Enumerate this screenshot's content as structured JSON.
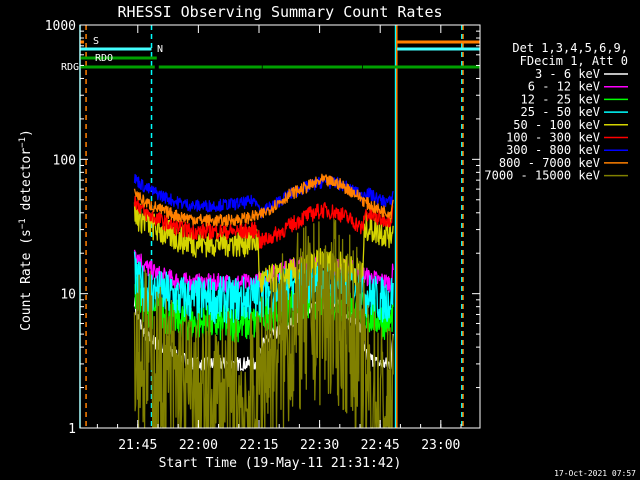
{
  "chart_data": {
    "type": "line",
    "title": "RHESSI Observing Summary Count Rates",
    "xlabel": "Start Time (19-May-11 21:31:42)",
    "ylabel": "Count Rate (s⁻¹ detector⁻¹)",
    "ylabel_main": "Count Rate (s",
    "ylabel_sup1": "−1",
    "ylabel_mid": " detector",
    "ylabel_sup2": "−1",
    "ylabel_end": ")",
    "yscale": "log",
    "ylim": [
      1,
      1000
    ],
    "xlim_minutes": [
      0,
      99
    ],
    "x_ticks": [
      {
        "m": 14.3,
        "label": "21:45"
      },
      {
        "m": 29.3,
        "label": "22:00"
      },
      {
        "m": 44.3,
        "label": "22:15"
      },
      {
        "m": 59.3,
        "label": "22:30"
      },
      {
        "m": 74.3,
        "label": "22:45"
      },
      {
        "m": 89.3,
        "label": "23:00"
      }
    ],
    "y_ticks": [
      {
        "v": 1,
        "label": "1"
      },
      {
        "v": 10,
        "label": "10"
      },
      {
        "v": 100,
        "label": "100"
      },
      {
        "v": 1000,
        "label": "1000"
      }
    ],
    "legend_header": [
      "Det 1,3,4,5,6,9,",
      "FDecim 1, Att 0"
    ],
    "legend_placement": "right",
    "timestamp": "17-Oct-2021 07:57",
    "series": [
      {
        "name": "3 - 6 keV",
        "color": "#ffffff",
        "points": [
          [
            13.5,
            9
          ],
          [
            14,
            7
          ],
          [
            16,
            5
          ],
          [
            20,
            4
          ],
          [
            24,
            3.5
          ],
          [
            28,
            3
          ],
          [
            32,
            3
          ],
          [
            36,
            3
          ],
          [
            40,
            3
          ],
          [
            44,
            3
          ],
          [
            44.5,
            4
          ],
          [
            48,
            5
          ],
          [
            52,
            6
          ],
          [
            56,
            7.5
          ],
          [
            60,
            8.5
          ],
          [
            64,
            8
          ],
          [
            68,
            6.5
          ],
          [
            70,
            5
          ],
          [
            70.5,
            3.5
          ],
          [
            74,
            3
          ],
          [
            77,
            3
          ],
          [
            77.5,
            5
          ]
        ]
      },
      {
        "name": "6 - 12 keV",
        "color": "#ff00ff",
        "points": [
          [
            13.5,
            22
          ],
          [
            14,
            20
          ],
          [
            16,
            16
          ],
          [
            20,
            13.5
          ],
          [
            24,
            12.5
          ],
          [
            28,
            12
          ],
          [
            32,
            12
          ],
          [
            36,
            12
          ],
          [
            40,
            12
          ],
          [
            44,
            12
          ],
          [
            44.5,
            13
          ],
          [
            48,
            14
          ],
          [
            52,
            15.5
          ],
          [
            56,
            16.5
          ],
          [
            60,
            16.5
          ],
          [
            64,
            16
          ],
          [
            68,
            15
          ],
          [
            70,
            14
          ],
          [
            70.5,
            13.5
          ],
          [
            74,
            12.5
          ],
          [
            77,
            12
          ],
          [
            77.5,
            15
          ]
        ]
      },
      {
        "name": "12 - 25 keV",
        "color": "#00ff00",
        "points": [
          [
            13.5,
            11
          ],
          [
            14,
            10
          ],
          [
            16,
            8
          ],
          [
            20,
            7
          ],
          [
            24,
            6.5
          ],
          [
            28,
            6
          ],
          [
            32,
            6
          ],
          [
            36,
            6
          ],
          [
            40,
            6
          ],
          [
            44,
            6
          ],
          [
            44.5,
            7
          ],
          [
            48,
            7.5
          ],
          [
            52,
            8
          ],
          [
            56,
            8.5
          ],
          [
            60,
            9
          ],
          [
            64,
            8.5
          ],
          [
            68,
            8
          ],
          [
            70,
            7.5
          ],
          [
            70.5,
            7
          ],
          [
            74,
            6.5
          ],
          [
            77,
            6
          ],
          [
            77.5,
            8
          ]
        ]
      },
      {
        "name": "25 - 50 keV",
        "color": "#00ffff",
        "points": [
          [
            13.5,
            14
          ],
          [
            14,
            12
          ],
          [
            16,
            11
          ],
          [
            20,
            10
          ],
          [
            24,
            9.5
          ],
          [
            28,
            9
          ],
          [
            32,
            9
          ],
          [
            36,
            9
          ],
          [
            40,
            9
          ],
          [
            44,
            9.5
          ],
          [
            44.5,
            10
          ],
          [
            48,
            10.5
          ],
          [
            52,
            11
          ],
          [
            56,
            12
          ],
          [
            60,
            12.5
          ],
          [
            64,
            12
          ],
          [
            68,
            11.5
          ],
          [
            70,
            11
          ],
          [
            70.5,
            10
          ],
          [
            74,
            9
          ],
          [
            77,
            9
          ],
          [
            77.5,
            12
          ]
        ]
      },
      {
        "name": "50 - 100 keV",
        "color": "#d4d400",
        "points": [
          [
            13.5,
            40
          ],
          [
            14,
            38
          ],
          [
            16,
            35
          ],
          [
            20,
            29
          ],
          [
            24,
            26
          ],
          [
            28,
            24
          ],
          [
            32,
            24
          ],
          [
            36,
            24
          ],
          [
            40,
            24
          ],
          [
            44,
            25
          ],
          [
            44.5,
            12
          ],
          [
            48,
            13
          ],
          [
            52,
            14
          ],
          [
            56,
            16
          ],
          [
            60,
            17
          ],
          [
            64,
            16
          ],
          [
            68,
            15
          ],
          [
            70,
            14
          ],
          [
            70.5,
            32
          ],
          [
            74,
            29
          ],
          [
            77,
            28
          ],
          [
            77.5,
            32
          ]
        ]
      },
      {
        "name": "100 - 300 keV",
        "color": "#ff0000",
        "points": [
          [
            13.5,
            50
          ],
          [
            14,
            48
          ],
          [
            16,
            40
          ],
          [
            20,
            35
          ],
          [
            24,
            31
          ],
          [
            28,
            29
          ],
          [
            32,
            29
          ],
          [
            36,
            29
          ],
          [
            40,
            29
          ],
          [
            44,
            30
          ],
          [
            44.5,
            24
          ],
          [
            48,
            27
          ],
          [
            52,
            32
          ],
          [
            56,
            38
          ],
          [
            60,
            42
          ],
          [
            64,
            40
          ],
          [
            68,
            34
          ],
          [
            70,
            30
          ],
          [
            70.5,
            40
          ],
          [
            74,
            36
          ],
          [
            77,
            36
          ],
          [
            77.5,
            45
          ]
        ]
      },
      {
        "name": "300 - 800 keV",
        "color": "#0000ff",
        "points": [
          [
            13.5,
            72
          ],
          [
            14,
            70
          ],
          [
            16,
            62
          ],
          [
            20,
            54
          ],
          [
            24,
            48
          ],
          [
            28,
            45
          ],
          [
            32,
            45
          ],
          [
            36,
            46
          ],
          [
            40,
            47
          ],
          [
            44,
            50
          ],
          [
            44.5,
            40
          ],
          [
            48,
            46
          ],
          [
            52,
            55
          ],
          [
            56,
            62
          ],
          [
            60,
            68
          ],
          [
            64,
            66
          ],
          [
            68,
            58
          ],
          [
            70,
            52
          ],
          [
            70.5,
            58
          ],
          [
            74,
            50
          ],
          [
            77,
            48
          ],
          [
            77.5,
            58
          ]
        ]
      },
      {
        "name": "800 - 7000 keV",
        "color": "#ff8000",
        "points": [
          [
            13.5,
            58
          ],
          [
            14,
            55
          ],
          [
            16,
            48
          ],
          [
            20,
            42
          ],
          [
            24,
            38
          ],
          [
            28,
            36
          ],
          [
            32,
            35
          ],
          [
            36,
            35
          ],
          [
            40,
            36
          ],
          [
            44,
            38
          ],
          [
            44.5,
            38
          ],
          [
            48,
            45
          ],
          [
            52,
            55
          ],
          [
            56,
            62
          ],
          [
            60,
            70
          ],
          [
            64,
            66
          ],
          [
            68,
            56
          ],
          [
            70,
            50
          ],
          [
            70.5,
            48
          ],
          [
            74,
            42
          ],
          [
            77,
            40
          ],
          [
            77.5,
            50
          ]
        ]
      },
      {
        "name": "7000 - 15000 keV",
        "color": "#808000",
        "points": [
          [
            13.5,
            6
          ],
          [
            14,
            5
          ],
          [
            16,
            3.5
          ],
          [
            20,
            2.5
          ],
          [
            24,
            2
          ],
          [
            28,
            1.5
          ],
          [
            32,
            1.5
          ],
          [
            36,
            1.5
          ],
          [
            40,
            1.5
          ],
          [
            44,
            1.5
          ],
          [
            44.5,
            2.5
          ],
          [
            48,
            3.5
          ],
          [
            52,
            5
          ],
          [
            56,
            6.5
          ],
          [
            60,
            7.5
          ],
          [
            64,
            7
          ],
          [
            68,
            5
          ],
          [
            70,
            3.5
          ],
          [
            70.5,
            2
          ],
          [
            74,
            1.5
          ],
          [
            77,
            1.2
          ],
          [
            77.5,
            2.5
          ]
        ]
      }
    ],
    "flag_labels": [
      {
        "text": "S",
        "color": "#ff8000"
      },
      {
        "text": "N",
        "color": "#00ffff"
      },
      {
        "text": "RDO",
        "color": "#00a000"
      },
      {
        "text": "RDG",
        "color": "#00a000"
      }
    ],
    "flags": [
      {
        "name": "S",
        "color": "#ff8000",
        "segments": [
          [
            0,
            1
          ],
          [
            78.5,
            99
          ]
        ]
      },
      {
        "name": "N",
        "color": "#44ffff",
        "segments": [
          [
            0,
            17.7
          ],
          [
            78.5,
            99
          ]
        ]
      },
      {
        "name": "RDO",
        "color": "#00a000",
        "segments": [
          [
            0,
            19
          ]
        ]
      },
      {
        "name": "RDG",
        "color": "#00a000",
        "segments": [
          [
            0,
            18.5
          ],
          [
            19.5,
            45
          ],
          [
            45.2,
            69.8
          ],
          [
            70,
            99
          ]
        ]
      }
    ],
    "vlines": [
      {
        "m": 0,
        "color": "#00ffff",
        "style": "solid"
      },
      {
        "m": 1.5,
        "color": "#ff8000",
        "style": "dashed"
      },
      {
        "m": 17.7,
        "color": "#00ffff",
        "style": "dashed"
      },
      {
        "m": 78.1,
        "color": "#00ffff",
        "style": "solid"
      },
      {
        "m": 78.4,
        "color": "#ff8000",
        "style": "solid"
      },
      {
        "m": 94.5,
        "color": "#00ffff",
        "style": "dashed"
      },
      {
        "m": 94.8,
        "color": "#ff8000",
        "style": "dashed"
      }
    ]
  }
}
